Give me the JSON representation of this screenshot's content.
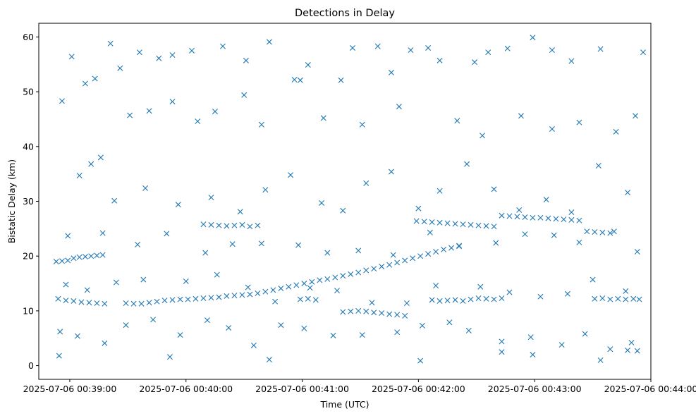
{
  "chart_data": {
    "type": "scatter",
    "title": "Detections in Delay",
    "xlabel": "Time (UTC)",
    "ylabel": "Bistatic Delay (km)",
    "x_unit": "seconds",
    "x_origin": "2025-07-06 00:38:30",
    "xlim": [
      "2025-07-06 00:38:44",
      "2025-07-06 00:44:00"
    ],
    "ylim": [
      -2.5,
      62.5
    ],
    "x_ticks": [
      "2025-07-06 00:39:00",
      "2025-07-06 00:40:00",
      "2025-07-06 00:41:00",
      "2025-07-06 00:42:00",
      "2025-07-06 00:43:00",
      "2025-07-06 00:44:00"
    ],
    "y_ticks": [
      0,
      10,
      20,
      30,
      40,
      50,
      60
    ],
    "grid": false,
    "marker": "x",
    "color": "#1f77b4",
    "series": [
      {
        "x_start": "2025-07-06 00:38:51",
        "x_end": "2025-07-06 00:43:53",
        "points": [
          [
            3.5,
            1.8
          ],
          [
            60.7,
            1.6
          ],
          [
            112,
            1.1
          ],
          [
            190,
            0.9
          ],
          [
            232,
            2.5
          ],
          [
            248,
            2.0
          ],
          [
            283,
            1.0
          ],
          [
            302,
            2.7
          ],
          [
            297,
            2.8
          ],
          [
            5,
            48.3
          ],
          [
            10,
            56.4
          ],
          [
            17,
            51.5
          ],
          [
            22,
            52.4
          ],
          [
            30,
            58.8
          ],
          [
            35,
            54.3
          ],
          [
            45,
            57.2
          ],
          [
            55,
            56.1
          ],
          [
            62,
            56.7
          ],
          [
            72,
            57.5
          ],
          [
            88,
            58.3
          ],
          [
            100,
            55.7
          ],
          [
            112,
            59.1
          ],
          [
            125,
            52.2
          ],
          [
            132,
            54.9
          ],
          [
            149,
            52.1
          ],
          [
            155,
            58.0
          ],
          [
            168,
            58.3
          ],
          [
            175,
            53.5
          ],
          [
            185,
            57.6
          ],
          [
            194,
            58.0
          ],
          [
            200,
            55.7
          ],
          [
            218,
            55.4
          ],
          [
            225,
            57.2
          ],
          [
            235,
            57.9
          ],
          [
            248,
            59.9
          ],
          [
            258,
            57.6
          ],
          [
            268,
            55.6
          ],
          [
            283,
            57.8
          ],
          [
            305,
            57.2
          ],
          [
            25,
            38.0
          ],
          [
            40,
            45.7
          ],
          [
            50,
            46.5
          ],
          [
            62,
            48.2
          ],
          [
            75,
            44.6
          ],
          [
            84,
            46.4
          ],
          [
            99,
            49.4
          ],
          [
            108,
            44.0
          ],
          [
            128,
            52.1
          ],
          [
            140,
            45.2
          ],
          [
            160,
            44.0
          ],
          [
            179,
            47.3
          ],
          [
            209,
            44.7
          ],
          [
            222,
            42.0
          ],
          [
            242,
            45.6
          ],
          [
            258,
            43.2
          ],
          [
            272,
            44.4
          ],
          [
            291,
            42.7
          ],
          [
            301,
            45.6
          ],
          [
            14,
            34.7
          ],
          [
            20,
            36.8
          ],
          [
            32,
            30.1
          ],
          [
            48,
            32.4
          ],
          [
            65,
            29.4
          ],
          [
            82,
            30.7
          ],
          [
            97,
            28.1
          ],
          [
            110,
            32.1
          ],
          [
            123,
            34.8
          ],
          [
            139,
            29.7
          ],
          [
            150,
            28.3
          ],
          [
            162,
            33.3
          ],
          [
            175,
            35.4
          ],
          [
            189,
            28.7
          ],
          [
            200,
            31.9
          ],
          [
            214,
            36.8
          ],
          [
            228,
            32.2
          ],
          [
            241,
            28.4
          ],
          [
            255,
            30.3
          ],
          [
            268,
            28.0
          ],
          [
            282,
            36.5
          ],
          [
            297,
            31.6
          ],
          [
            8,
            23.7
          ],
          [
            26,
            24.2
          ],
          [
            44,
            22.1
          ],
          [
            59,
            24.1
          ],
          [
            79,
            20.6
          ],
          [
            93,
            22.2
          ],
          [
            108,
            22.3
          ],
          [
            127,
            22.0
          ],
          [
            142,
            20.6
          ],
          [
            158,
            21.0
          ],
          [
            176,
            20.2
          ],
          [
            195,
            24.3
          ],
          [
            210,
            21.8
          ],
          [
            229,
            22.4
          ],
          [
            244,
            24.0
          ],
          [
            259,
            23.8
          ],
          [
            272,
            22.5
          ],
          [
            290,
            24.5
          ],
          [
            302,
            20.8
          ],
          [
            4,
            6.2
          ],
          [
            13,
            5.4
          ],
          [
            27,
            4.1
          ],
          [
            38,
            7.4
          ],
          [
            52,
            8.4
          ],
          [
            66,
            5.6
          ],
          [
            80,
            8.3
          ],
          [
            91,
            6.9
          ],
          [
            104,
            3.7
          ],
          [
            118,
            7.4
          ],
          [
            130,
            6.8
          ],
          [
            145,
            5.5
          ],
          [
            160,
            5.6
          ],
          [
            178,
            6.1
          ],
          [
            191,
            7.3
          ],
          [
            205,
            7.9
          ],
          [
            215,
            6.4
          ],
          [
            232,
            4.4
          ],
          [
            247,
            5.2
          ],
          [
            263,
            3.8
          ],
          [
            275,
            5.8
          ],
          [
            288,
            3.0
          ],
          [
            299,
            4.2
          ],
          [
            7,
            14.8
          ],
          [
            18,
            13.8
          ],
          [
            33,
            15.2
          ],
          [
            47,
            15.7
          ],
          [
            69,
            15.4
          ],
          [
            85,
            16.6
          ],
          [
            101,
            14.3
          ],
          [
            115,
            11.7
          ],
          [
            133,
            14.2
          ],
          [
            147,
            13.7
          ],
          [
            165,
            11.5
          ],
          [
            183,
            11.4
          ],
          [
            198,
            14.6
          ],
          [
            221,
            14.4
          ],
          [
            236,
            13.4
          ],
          [
            252,
            12.6
          ],
          [
            266,
            13.1
          ],
          [
            279,
            15.7
          ],
          [
            296,
            13.6
          ],
          [
            2,
            19.0
          ],
          [
            5,
            19.1
          ],
          [
            8,
            19.2
          ],
          [
            11,
            19.6
          ],
          [
            14,
            19.8
          ],
          [
            17,
            19.9
          ],
          [
            20,
            20.0
          ],
          [
            23,
            20.1
          ],
          [
            26,
            20.2
          ],
          [
            3,
            12.2
          ],
          [
            7,
            11.9
          ],
          [
            11,
            11.8
          ],
          [
            15,
            11.6
          ],
          [
            19,
            11.5
          ],
          [
            23,
            11.4
          ],
          [
            27,
            11.3
          ],
          [
            38,
            11.4
          ],
          [
            42,
            11.3
          ],
          [
            46,
            11.3
          ],
          [
            50,
            11.5
          ],
          [
            54,
            11.7
          ],
          [
            58,
            11.9
          ],
          [
            62,
            12.0
          ],
          [
            66,
            12.1
          ],
          [
            70,
            12.1
          ],
          [
            74,
            12.2
          ],
          [
            78,
            12.3
          ],
          [
            82,
            12.4
          ],
          [
            86,
            12.5
          ],
          [
            90,
            12.7
          ],
          [
            94,
            12.8
          ],
          [
            98,
            12.9
          ],
          [
            102,
            13.0
          ],
          [
            106,
            13.2
          ],
          [
            110,
            13.5
          ],
          [
            114,
            13.8
          ],
          [
            118,
            14.1
          ],
          [
            122,
            14.4
          ],
          [
            126,
            14.7
          ],
          [
            130,
            15.0
          ],
          [
            134,
            15.3
          ],
          [
            138,
            15.6
          ],
          [
            142,
            15.8
          ],
          [
            146,
            16.1
          ],
          [
            150,
            16.4
          ],
          [
            154,
            16.7
          ],
          [
            158,
            17.0
          ],
          [
            162,
            17.4
          ],
          [
            166,
            17.7
          ],
          [
            170,
            18.1
          ],
          [
            174,
            18.4
          ],
          [
            178,
            18.8
          ],
          [
            182,
            19.2
          ],
          [
            186,
            19.6
          ],
          [
            190,
            20.0
          ],
          [
            194,
            20.4
          ],
          [
            198,
            20.8
          ],
          [
            202,
            21.2
          ],
          [
            206,
            21.5
          ],
          [
            210,
            21.9
          ],
          [
            188,
            26.4
          ],
          [
            192,
            26.3
          ],
          [
            196,
            26.2
          ],
          [
            200,
            26.1
          ],
          [
            204,
            26.0
          ],
          [
            208,
            25.9
          ],
          [
            212,
            25.8
          ],
          [
            216,
            25.7
          ],
          [
            220,
            25.6
          ],
          [
            224,
            25.5
          ],
          [
            228,
            25.4
          ],
          [
            232,
            27.4
          ],
          [
            236,
            27.3
          ],
          [
            240,
            27.2
          ],
          [
            244,
            27.1
          ],
          [
            248,
            27.0
          ],
          [
            252,
            27.0
          ],
          [
            256,
            26.9
          ],
          [
            260,
            26.8
          ],
          [
            264,
            26.7
          ],
          [
            268,
            26.6
          ],
          [
            272,
            26.5
          ],
          [
            276,
            24.5
          ],
          [
            280,
            24.4
          ],
          [
            284,
            24.3
          ],
          [
            288,
            24.2
          ],
          [
            280,
            12.2
          ],
          [
            284,
            12.3
          ],
          [
            288,
            12.1
          ],
          [
            292,
            12.2
          ],
          [
            296,
            12.1
          ],
          [
            300,
            12.2
          ],
          [
            303,
            12.1
          ],
          [
            150,
            9.8
          ],
          [
            154,
            9.9
          ],
          [
            158,
            10.0
          ],
          [
            162,
            9.9
          ],
          [
            166,
            9.7
          ],
          [
            170,
            9.6
          ],
          [
            174,
            9.4
          ],
          [
            178,
            9.3
          ],
          [
            182,
            9.1
          ],
          [
            128,
            12.1
          ],
          [
            132,
            12.2
          ],
          [
            136,
            12.0
          ],
          [
            220,
            12.3
          ],
          [
            224,
            12.2
          ],
          [
            228,
            12.1
          ],
          [
            232,
            12.3
          ],
          [
            216,
            12.1
          ],
          [
            212,
            11.8
          ],
          [
            78,
            25.8
          ],
          [
            82,
            25.7
          ],
          [
            86,
            25.6
          ],
          [
            90,
            25.5
          ],
          [
            94,
            25.6
          ],
          [
            98,
            25.7
          ],
          [
            102,
            25.4
          ],
          [
            106,
            25.6
          ],
          [
            196,
            12.0
          ],
          [
            200,
            11.8
          ],
          [
            204,
            11.9
          ],
          [
            208,
            12.0
          ]
        ]
      }
    ]
  }
}
